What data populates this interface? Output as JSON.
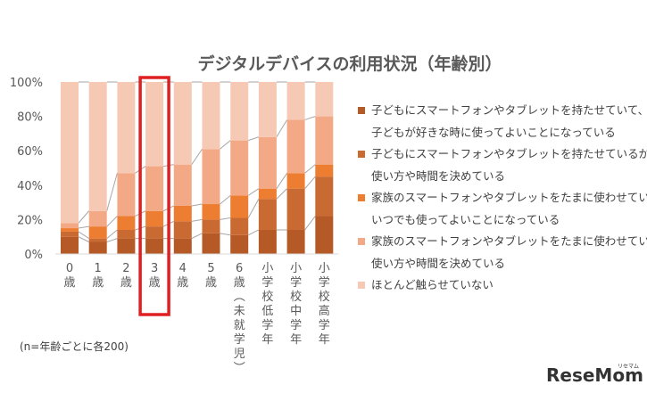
{
  "chart_data": {
    "type": "bar",
    "stacked": true,
    "title": "デジタルデバイスの利用状況（年齢別）",
    "categories": [
      "0歳",
      "1歳",
      "2歳",
      "3歳",
      "4歳",
      "5歳",
      "6歳（未就学児）",
      "小学校低学年",
      "小学校中学年",
      "小学校高学年"
    ],
    "ylim": [
      0,
      100
    ],
    "yticks": [
      "0%",
      "20%",
      "40%",
      "60%",
      "80%",
      "100%"
    ],
    "highlighted_category": "3歳",
    "highlight_color": "#e02020",
    "legend_position": "right",
    "series": [
      {
        "name": "子どもにスマートフォンやタブレットを持たせていて、子どもが好きな時に使ってよいことになっている",
        "legend_lines": [
          "子どもにスマートフォンやタブレットを持たせていて、",
          "子どもが好きな時に使ってよいことになっている"
        ],
        "color": "#b55a26",
        "values": [
          10,
          7,
          9,
          9,
          9,
          12,
          11,
          14,
          14,
          22
        ]
      },
      {
        "name": "子どもにスマートフォンやタブレットを持たせているが、使い方や時間を決めている",
        "legend_lines": [
          "子どもにスマートフォンやタブレットを持たせているが、",
          "使い方や時間を決めている"
        ],
        "color": "#c96a32",
        "values": [
          3,
          2,
          5,
          7,
          10,
          8,
          10,
          18,
          24,
          23
        ]
      },
      {
        "name": "家族のスマートフォンやタブレットをたまに使わせているが、いつでも使ってよいことになっている",
        "legend_lines": [
          "家族のスマートフォンやタブレットをたまに使わせているが、",
          "いつでも使ってよいことになっている"
        ],
        "color": "#ed7d31",
        "values": [
          2,
          7,
          8,
          9,
          9,
          9,
          13,
          6,
          9,
          7
        ]
      },
      {
        "name": "家族のスマートフォンやタブレットをたまに使わせているが、使い方や時間を決めている",
        "legend_lines": [
          "家族のスマートフォンやタブレットをたまに使わせているが、",
          "使い方や時間を決めている"
        ],
        "color": "#f3a985",
        "values": [
          3,
          9,
          25,
          26,
          24,
          32,
          32,
          30,
          31,
          28
        ]
      },
      {
        "name": "ほとんど触らせていない",
        "legend_lines": [
          "ほとんど触らせていない"
        ],
        "color": "#f6c9b5",
        "values": [
          82,
          75,
          53,
          49,
          48,
          39,
          34,
          32,
          22,
          20
        ]
      }
    ]
  },
  "note": "(n=年齢ごとに各200)",
  "brand": {
    "name": "ReseMom",
    "sub": "リセマム"
  }
}
